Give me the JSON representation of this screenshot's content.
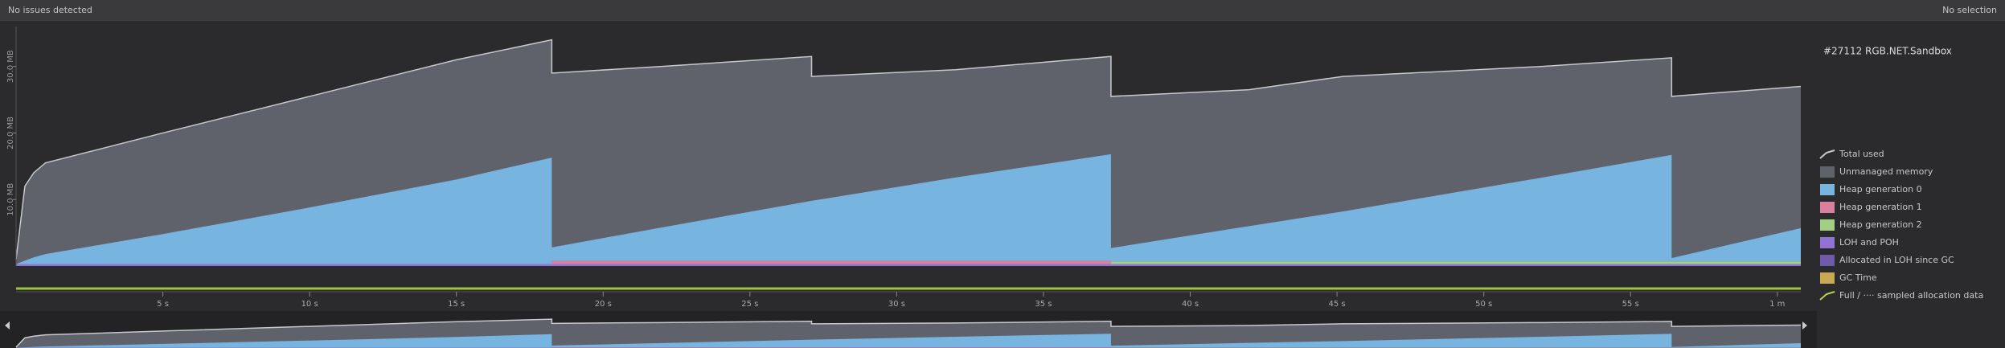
{
  "header": {
    "status": "No issues detected",
    "selection": "No selection"
  },
  "process": "#27112 RGB.NET.Sandbox",
  "chart_data": {
    "type": "area",
    "x": [
      0,
      0.3,
      0.6,
      1,
      5,
      10,
      15,
      18.25,
      18.25,
      22,
      27.1,
      27.1,
      32,
      37.3,
      37.3,
      42,
      45.2,
      52,
      56.4,
      56.4,
      60.8
    ],
    "xlim": [
      0,
      60.8
    ],
    "xticks": [
      {
        "value": 5,
        "label": "5 s"
      },
      {
        "value": 10,
        "label": "10 s"
      },
      {
        "value": 15,
        "label": "15 s"
      },
      {
        "value": 20,
        "label": "20 s"
      },
      {
        "value": 25,
        "label": "25 s"
      },
      {
        "value": 30,
        "label": "30 s"
      },
      {
        "value": 35,
        "label": "35 s"
      },
      {
        "value": 40,
        "label": "40 s"
      },
      {
        "value": 45,
        "label": "45 s"
      },
      {
        "value": 50,
        "label": "50 s"
      },
      {
        "value": 55,
        "label": "55 s"
      },
      {
        "value": 60,
        "label": "1 m"
      }
    ],
    "ylim": [
      0,
      36
    ],
    "yticks": [
      {
        "value": 10,
        "label": "10.0 MB"
      },
      {
        "value": 20,
        "label": "20.0 MB"
      },
      {
        "value": 30,
        "label": "30.0 MB"
      }
    ],
    "series": [
      {
        "name": "Total used",
        "color": "#c8c8cc",
        "fill": "#60626b",
        "values": [
          1,
          12,
          14,
          15.5,
          20,
          25.5,
          31,
          34,
          29,
          30,
          31.5,
          28.5,
          29.5,
          31.5,
          25.5,
          26.5,
          28.5,
          30,
          31.3,
          25.5,
          27
        ]
      },
      {
        "name": "Heap generation 0",
        "color": "#78b4e0",
        "values": [
          0,
          0.5,
          1,
          1.5,
          4.5,
          8.5,
          12.7,
          16,
          2,
          5,
          9,
          9,
          12.5,
          16,
          2,
          5.3,
          7.5,
          12.6,
          16,
          0.5,
          5
        ]
      },
      {
        "name": "Heap generation 1",
        "color": "#d9809e",
        "values": [
          0,
          0,
          0,
          0,
          0,
          0,
          0,
          0,
          0.5,
          0.5,
          0.5,
          0.5,
          0.5,
          0.5,
          0,
          0,
          0,
          0,
          0,
          0,
          0
        ]
      },
      {
        "name": "Heap generation 2",
        "color": "#a3cf82",
        "values": [
          0,
          0,
          0,
          0,
          0,
          0,
          0,
          0,
          0,
          0,
          0,
          0,
          0,
          0,
          0.4,
          0.4,
          0.4,
          0.4,
          0.4,
          0.4,
          0.4
        ]
      },
      {
        "name": "LOH and POH",
        "color": "#8f74d6",
        "values": [
          0.3,
          0.3,
          0.3,
          0.3,
          0.3,
          0.3,
          0.3,
          0.3,
          0.3,
          0.3,
          0.3,
          0.3,
          0.3,
          0.3,
          0.3,
          0.3,
          0.3,
          0.3,
          0.3,
          0.3,
          0.3
        ]
      }
    ],
    "legend_extra": [
      {
        "label": "Unmanaged memory",
        "color": "#60626b"
      },
      {
        "label": "Allocated in LOH since GC",
        "color": "#6e5aa8"
      },
      {
        "label": "GC Time",
        "color": "#c8a850"
      },
      {
        "label": "Full / ···· sampled allocation data",
        "color": "#b5d64c"
      }
    ]
  }
}
